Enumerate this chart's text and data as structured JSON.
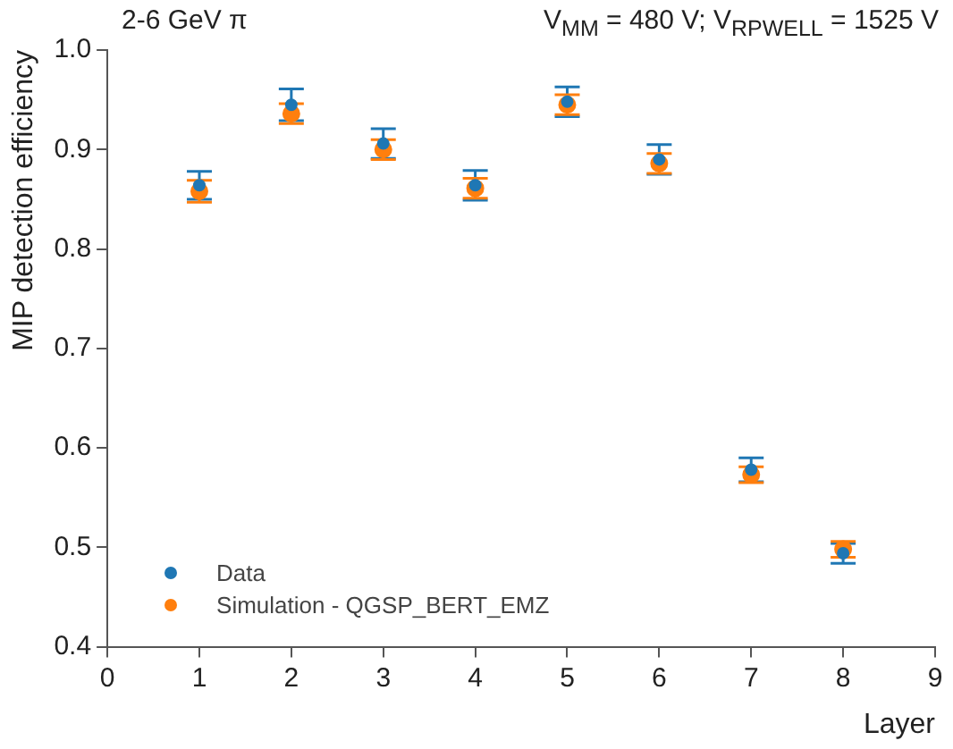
{
  "chart_data": {
    "type": "scatter",
    "title": "2-6 GeV π",
    "subtitle": "V$_{MM}$ = 480 V; V$_{RPWELL}$ = 1525 V",
    "xlabel": "Layer",
    "ylabel": "MIP detection efficiency",
    "x": [
      1,
      2,
      3,
      4,
      5,
      6,
      7,
      8
    ],
    "series": [
      {
        "name": "Data",
        "color": "#1f77b4",
        "values": [
          0.864,
          0.945,
          0.906,
          0.864,
          0.948,
          0.89,
          0.578,
          0.494
        ],
        "errors": [
          0.014,
          0.016,
          0.015,
          0.015,
          0.015,
          0.015,
          0.012,
          0.01
        ]
      },
      {
        "name": "Simulation - QGSP_BERT_EMZ",
        "color": "#ff7f0e",
        "values": [
          0.858,
          0.936,
          0.9,
          0.861,
          0.945,
          0.886,
          0.573,
          0.498
        ],
        "errors": [
          0.011,
          0.01,
          0.01,
          0.01,
          0.01,
          0.01,
          0.008,
          0.008
        ]
      }
    ],
    "xlim": [
      0,
      9
    ],
    "xticks": [
      0,
      1,
      2,
      3,
      4,
      5,
      6,
      7,
      8,
      9
    ],
    "ylim": [
      0.4,
      1.0
    ],
    "yticks": [
      {
        "value": 0.4,
        "label": "0.4"
      },
      {
        "value": 0.5,
        "label": "0.5"
      },
      {
        "value": 0.6,
        "label": "0.6"
      },
      {
        "value": 0.7,
        "label": "0.7"
      },
      {
        "value": 0.8,
        "label": "0.8"
      },
      {
        "value": 0.9,
        "label": "0.9"
      },
      {
        "value": 1.0,
        "label": "1.0"
      }
    ],
    "grid": false,
    "legend": "bottom left"
  }
}
